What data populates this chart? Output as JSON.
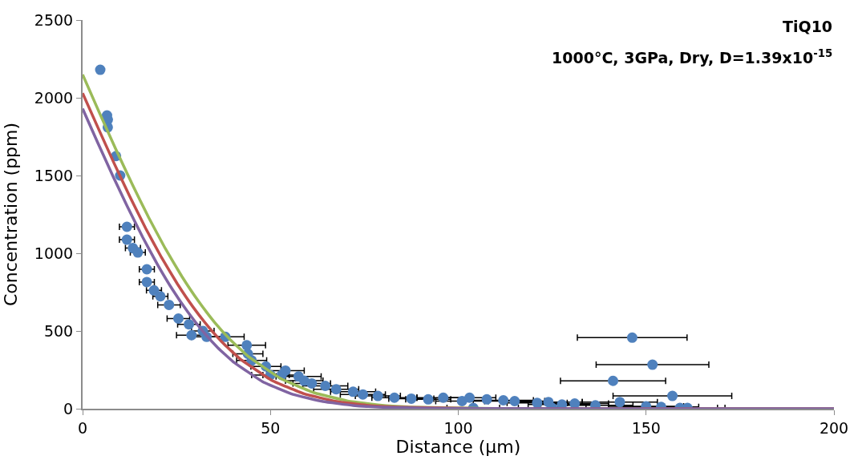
{
  "chart_data": {
    "type": "scatter",
    "title": "TiQ10",
    "subtitle": "1000°C, 3GPa, Dry, D=1.39x10$^{-15}$",
    "xlabel": "Distance (µm)",
    "ylabel": "Concentration (ppm)",
    "xlim": [
      0,
      200
    ],
    "xticks": [
      0,
      50,
      100,
      150,
      200
    ],
    "ylim": [
      0,
      2500
    ],
    "yticks": [
      0,
      500,
      1000,
      1500,
      2000,
      2500
    ],
    "series": [
      {
        "color": "#4f81bd",
        "marker": "circle",
        "x": [
          4.7,
          6.5,
          6.7,
          6.7,
          8.9,
          10,
          11.8,
          11.8,
          13.4,
          14.7,
          17.1,
          17.1,
          19,
          20.7,
          23,
          25.5,
          28.3,
          29,
          32,
          33,
          38,
          43.7,
          44,
          45,
          48.8,
          50,
          53,
          54,
          57.5,
          59,
          61,
          64.6,
          67.5,
          72,
          74.6,
          78.6,
          83,
          87.5,
          92,
          96,
          101,
          103,
          104,
          107.6,
          112,
          115,
          121,
          124,
          125,
          127.6,
          131,
          136.5,
          141.2,
          143,
          146.3,
          150,
          151.7,
          154,
          157,
          159,
          161
        ],
        "values": [
          2180,
          1886,
          1859,
          1810,
          1625,
          1500,
          1170,
          1087,
          1033,
          1005,
          897,
          815,
          761,
          723,
          668,
          580,
          543,
          473,
          500,
          462,
          462,
          408,
          353,
          310,
          272,
          217,
          217,
          245,
          207,
          180,
          163,
          147,
          125,
          109,
          92,
          82,
          71,
          65,
          60,
          71,
          49,
          71,
          5,
          60,
          54,
          49,
          38,
          43,
          5,
          27,
          33,
          22,
          179,
          43,
          457,
          16,
          283,
          11,
          82,
          5,
          5
        ],
        "xerrors": [
          null,
          null,
          null,
          null,
          null,
          null,
          2,
          2,
          2,
          2,
          2,
          2,
          2,
          2,
          3,
          3,
          3,
          4,
          3,
          4,
          5,
          5,
          4,
          4,
          4,
          5,
          5,
          5,
          6,
          5,
          5,
          6,
          6,
          6,
          6,
          6,
          6,
          6,
          6,
          7,
          7,
          7,
          7,
          null,
          8,
          8,
          8,
          9,
          9,
          9,
          9,
          10,
          14,
          10,
          14.6,
          10,
          15,
          10,
          15.8,
          10,
          10
        ]
      },
      {
        "type": "line",
        "color": "#9bbb59",
        "marker": "none",
        "line_style": "solid",
        "x": [
          0,
          4.4,
          8.8,
          13.2,
          17.6,
          22,
          26.4,
          30.8,
          35.2,
          39.6,
          44,
          52.8,
          61.6,
          70.4,
          79.2,
          88,
          110,
          200
        ],
        "values": [
          2150,
          1908,
          1671,
          1444,
          1229,
          1031,
          852,
          693,
          554,
          437,
          338,
          193,
          103,
          51,
          23,
          10,
          1,
          0
        ]
      },
      {
        "type": "line",
        "color": "#c0504d",
        "marker": "none",
        "line_style": "solid",
        "x": [
          0,
          4.2,
          8.4,
          12.6,
          16.8,
          21,
          25.2,
          29.4,
          33.6,
          37.8,
          42,
          50.4,
          58.8,
          67.2,
          75.6,
          84,
          105,
          200
        ],
        "values": [
          2030,
          1802,
          1578,
          1363,
          1160,
          973,
          804,
          654,
          524,
          412,
          319,
          182,
          97,
          48,
          22,
          10,
          1,
          0
        ]
      },
      {
        "type": "line",
        "color": "#8064a2",
        "marker": "none",
        "line_style": "solid",
        "x": [
          0,
          4,
          8,
          12,
          16,
          20,
          24,
          28,
          32,
          36,
          40,
          48,
          56,
          64,
          72,
          80,
          100,
          200
        ],
        "values": [
          1930,
          1713,
          1500,
          1296,
          1103,
          925,
          764,
          622,
          498,
          392,
          304,
          173,
          92,
          46,
          21,
          9,
          1,
          0
        ]
      }
    ]
  }
}
